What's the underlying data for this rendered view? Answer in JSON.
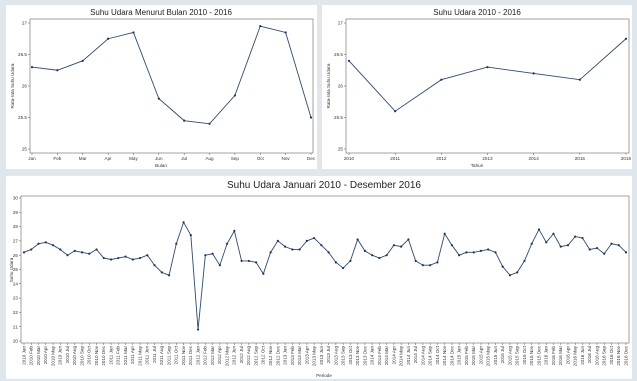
{
  "chart_data": [
    {
      "type": "line",
      "title": "Suhu Udara Menurut Bulan 2010 - 2016",
      "xlabel": "Bulan",
      "ylabel": "Rata-rata Suhu Udara",
      "categories": [
        "Jan",
        "Feb",
        "Mar",
        "Apr",
        "May",
        "Jun",
        "Jul",
        "Aug",
        "Sep",
        "Oct",
        "Nov",
        "Dec"
      ],
      "values": [
        26.3,
        26.25,
        26.4,
        26.75,
        26.85,
        25.8,
        25.45,
        25.4,
        25.85,
        26.95,
        26.85,
        25.5
      ],
      "ylim": [
        25,
        27
      ],
      "yticks": [
        "25",
        "25.5",
        "26",
        "26.5",
        "27"
      ],
      "grid": false
    },
    {
      "type": "line",
      "title": "Suhu Udara 2010 - 2016",
      "xlabel": "Tahun",
      "ylabel": "Rata-rata Suhu Udara",
      "categories": [
        "2010",
        "2011",
        "2012",
        "2013",
        "2014",
        "2015",
        "2016"
      ],
      "values": [
        26.4,
        25.6,
        26.1,
        26.3,
        26.2,
        26.1,
        26.75
      ],
      "ylim": [
        25,
        27
      ],
      "yticks": [
        "25",
        "25.5",
        "26",
        "26.5",
        "27"
      ],
      "grid": false
    },
    {
      "type": "line",
      "title": "Suhu Udara Januari 2010 - Desember 2016",
      "xlabel": "Periode",
      "ylabel": "Suhu Udara",
      "ylim": [
        20,
        30
      ],
      "yticks": [
        "20",
        "21",
        "22",
        "23",
        "24",
        "25",
        "26",
        "27",
        "28",
        "29",
        "30"
      ],
      "years": [
        "2010",
        "2011",
        "2012",
        "2013",
        "2014",
        "2015",
        "2016"
      ],
      "months": [
        "Jan",
        "Feb",
        "Mar",
        "Apr",
        "May",
        "Jun",
        "Jul",
        "Aug",
        "Sep",
        "Oct",
        "Nov",
        "Dec"
      ],
      "values": [
        26.2,
        26.4,
        26.8,
        26.9,
        26.7,
        26.4,
        26.0,
        26.3,
        26.2,
        26.1,
        26.4,
        25.8,
        25.7,
        25.8,
        25.9,
        25.7,
        25.8,
        26.0,
        25.3,
        24.8,
        24.6,
        26.8,
        28.3,
        27.4,
        20.8,
        26.0,
        26.1,
        25.3,
        26.8,
        27.7,
        25.6,
        25.6,
        25.5,
        24.7,
        26.2,
        27.0,
        26.6,
        26.4,
        26.4,
        27.0,
        27.2,
        26.7,
        26.2,
        25.5,
        25.1,
        25.6,
        27.1,
        26.3,
        26.0,
        25.8,
        26.0,
        26.7,
        26.6,
        27.1,
        25.6,
        25.3,
        25.3,
        25.5,
        27.5,
        26.7,
        26.0,
        26.2,
        26.2,
        26.3,
        26.4,
        26.2,
        25.2,
        24.6,
        24.8,
        25.6,
        26.8,
        27.8,
        26.9,
        27.5,
        26.6,
        26.7,
        27.3,
        27.2,
        26.4,
        26.5,
        26.1,
        26.8,
        26.7,
        26.2
      ],
      "grid": false
    }
  ]
}
